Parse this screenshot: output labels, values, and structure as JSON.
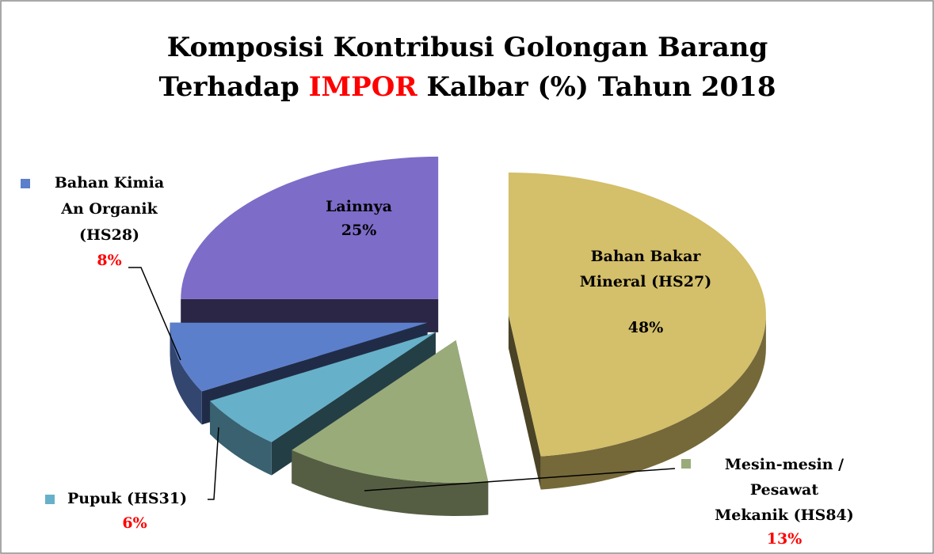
{
  "chart_data": {
    "type": "pie",
    "title": [
      "Komposisi Kontribusi Golongan Barang",
      [
        "Terhadap",
        "IMPOR",
        "Kalbar (%) Tahun 2018"
      ]
    ],
    "title_highlight_color": "#ff0000",
    "categories": [
      [
        "Bahan Bakar",
        "Mineral (HS27)"
      ],
      [
        "Mesin-mesin /",
        "Pesawat",
        "Mekanik (HS84)"
      ],
      [
        "Pupuk (HS31)"
      ],
      [
        "Bahan Kimia",
        "An Organik",
        "(HS28)"
      ],
      [
        "Lainnya"
      ]
    ],
    "values": [
      48,
      13,
      6,
      8,
      25
    ],
    "value_labels": [
      "48%",
      "13%",
      "6%",
      "8%",
      "25%"
    ],
    "colors": [
      "#d4bf6a",
      "#9aab7a",
      "#67b0c9",
      "#5c7fcc",
      "#7d6cc8"
    ],
    "value_label_colors": [
      "#000000",
      "#ff0000",
      "#ff0000",
      "#ff0000",
      "#000000"
    ]
  }
}
